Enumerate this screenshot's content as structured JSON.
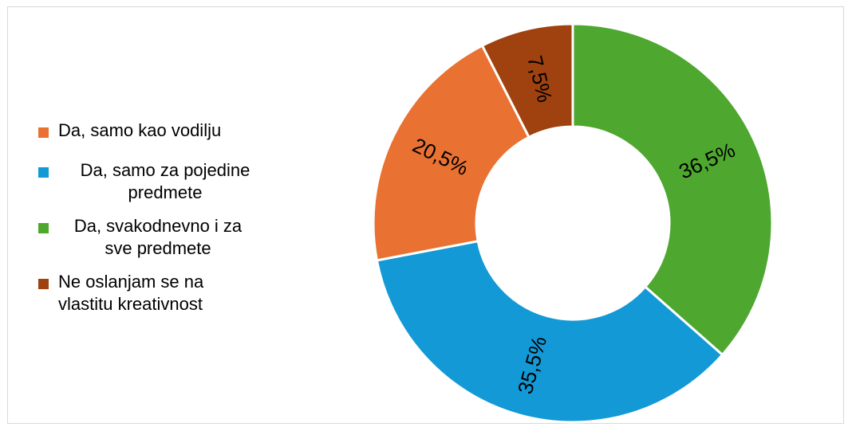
{
  "chart_data": {
    "type": "pie",
    "variant": "donut",
    "title": "",
    "categories": [
      "Da, samo kao vodilju",
      "Da, samo za pojedine predmete",
      "Da, svakodnevno i za sve predmete",
      "Ne oslanjam se na vlastitu kreativnost"
    ],
    "values": [
      20.5,
      35.5,
      36.5,
      7.5
    ],
    "value_labels": [
      "20,5%",
      "35,5%",
      "36,5%",
      "7,5%"
    ],
    "colors": [
      "#e97132",
      "#1299d6",
      "#4ea72e",
      "#a0420f"
    ],
    "legend_position": "left",
    "label_position": "inside-rotated",
    "draw_order_clockwise_from_top": [
      2,
      1,
      0,
      3
    ]
  }
}
